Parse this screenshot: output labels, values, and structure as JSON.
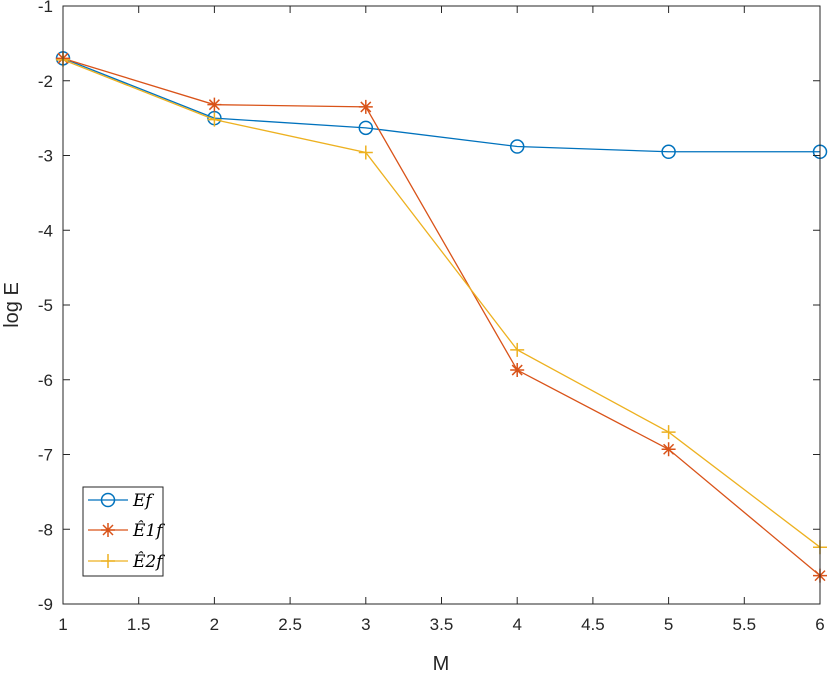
{
  "chart_data": {
    "type": "line",
    "xlabel": "M",
    "ylabel": "log E",
    "xlim": [
      1,
      6
    ],
    "ylim": [
      -9,
      -1
    ],
    "xticks": [
      1,
      1.5,
      2,
      2.5,
      3,
      3.5,
      4,
      4.5,
      5,
      5.5,
      6
    ],
    "yticks": [
      -9,
      -8,
      -7,
      -6,
      -5,
      -4,
      -3,
      -2,
      -1
    ],
    "grid": false,
    "legend_position": "bottom-left",
    "x": [
      1,
      2,
      3,
      4,
      5,
      6
    ],
    "series": [
      {
        "name": "Ef",
        "marker": "circle",
        "color": "#0072BD",
        "values": [
          -1.7,
          -2.5,
          -2.63,
          -2.88,
          -2.95,
          -2.95
        ]
      },
      {
        "name": "Ê1f",
        "marker": "asterisk",
        "color": "#D95319",
        "values": [
          -1.7,
          -2.32,
          -2.35,
          -5.87,
          -6.93,
          -8.62
        ]
      },
      {
        "name": "Ê2f",
        "marker": "plus",
        "color": "#EDB120",
        "values": [
          -1.72,
          -2.52,
          -2.96,
          -5.6,
          -6.7,
          -8.24
        ]
      }
    ]
  }
}
